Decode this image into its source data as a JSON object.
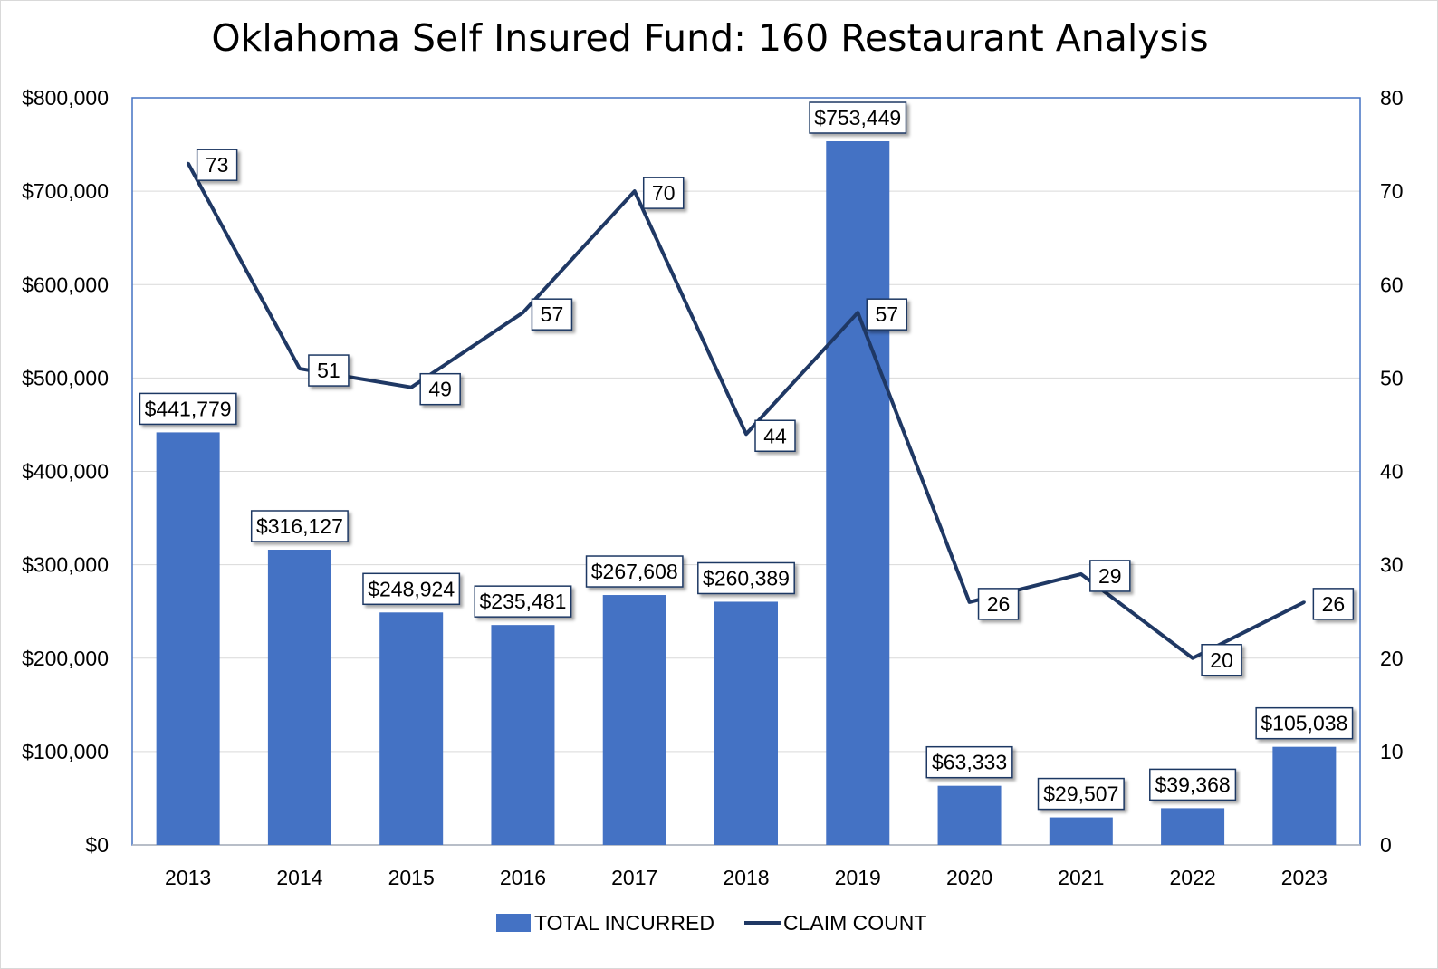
{
  "chart_data": {
    "type": "bar",
    "title": "Oklahoma Self Insured Fund: 160 Restaurant Analysis",
    "categories": [
      "2013",
      "2014",
      "2015",
      "2016",
      "2017",
      "2018",
      "2019",
      "2020",
      "2021",
      "2022",
      "2023"
    ],
    "series": [
      {
        "name": "TOTAL INCURRED",
        "type": "bar",
        "axis": "left",
        "color": "#4472c4",
        "values": [
          441779,
          316127,
          248924,
          235481,
          267608,
          260389,
          753449,
          63333,
          29507,
          39368,
          105038
        ],
        "labels": [
          "$441,779",
          "$316,127",
          "$248,924",
          "$235,481",
          "$267,608",
          "$260,389",
          "$753,449",
          "$63,333",
          "$29,507",
          "$39,368",
          "$105,038"
        ]
      },
      {
        "name": "CLAIM COUNT",
        "type": "line",
        "axis": "right",
        "color": "#1f3864",
        "values": [
          73,
          51,
          49,
          57,
          70,
          44,
          57,
          26,
          29,
          20,
          26
        ],
        "labels": [
          "73",
          "51",
          "49",
          "57",
          "70",
          "44",
          "57",
          "26",
          "29",
          "20",
          "26"
        ]
      }
    ],
    "y_left": {
      "range": [
        0,
        800000
      ],
      "ticks": [
        "$0",
        "$100,000",
        "$200,000",
        "$300,000",
        "$400,000",
        "$500,000",
        "$600,000",
        "$700,000",
        "$800,000"
      ]
    },
    "y_right": {
      "range": [
        0,
        80
      ],
      "ticks": [
        "0",
        "10",
        "20",
        "30",
        "40",
        "50",
        "60",
        "70",
        "80"
      ]
    },
    "grid": true,
    "legend": "bottom"
  }
}
